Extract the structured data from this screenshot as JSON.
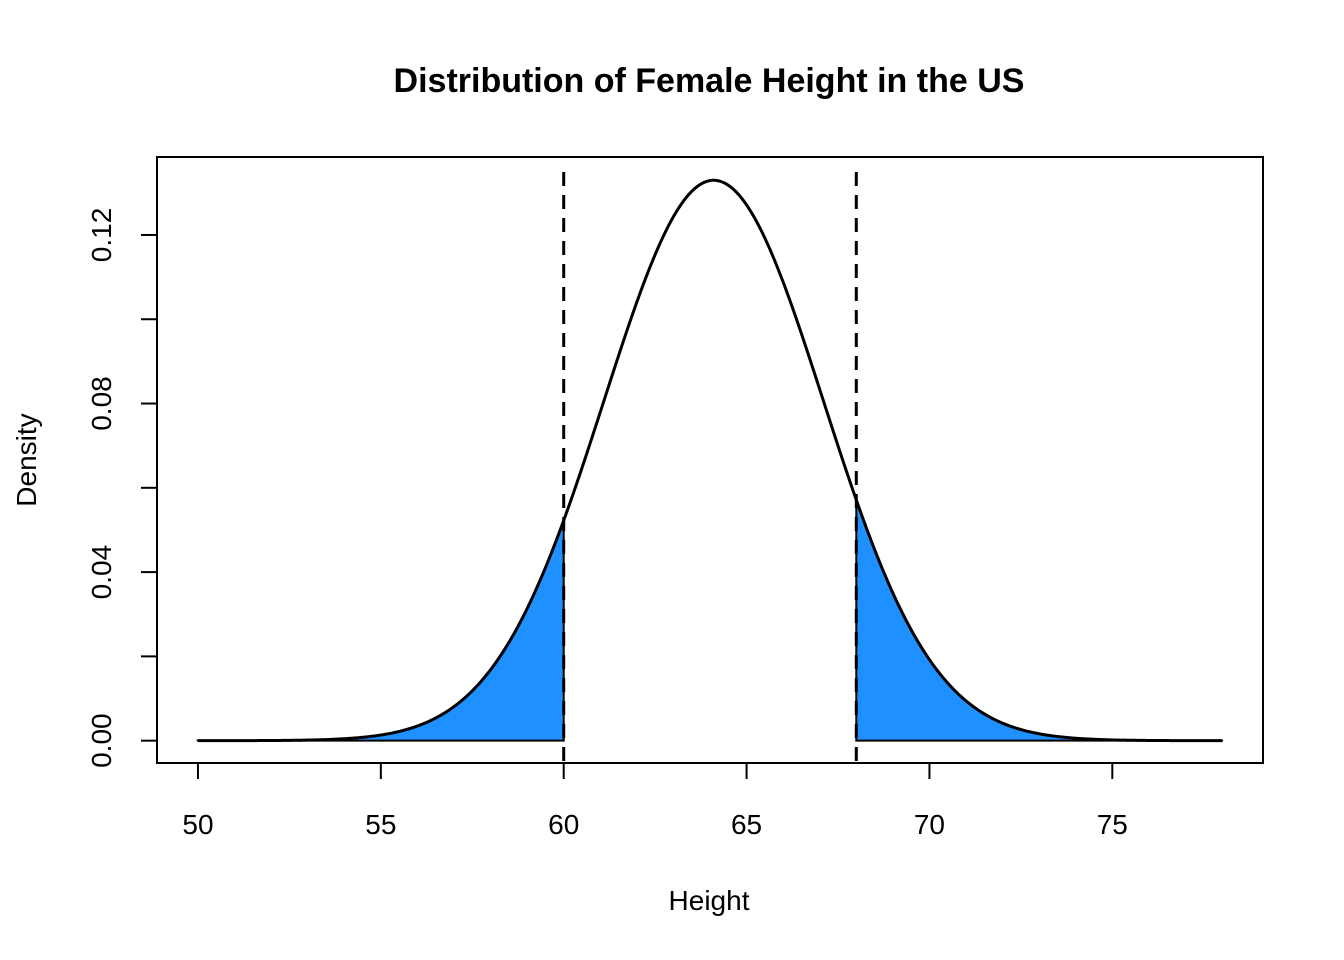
{
  "chart_data": {
    "type": "area",
    "title": "Distribution of Female Height in the US",
    "xlabel": "Height",
    "ylabel": "Density",
    "xlim": [
      48.88,
      79.12
    ],
    "ylim": [
      -0.0053,
      0.1385
    ],
    "x_ticks": [
      50,
      55,
      60,
      65,
      70,
      75
    ],
    "x_tick_labels": [
      "50",
      "55",
      "60",
      "65",
      "70",
      "75"
    ],
    "y_ticks": [
      0.0,
      0.02,
      0.04,
      0.06,
      0.08,
      0.1,
      0.12
    ],
    "y_tick_labels": [
      "0.00",
      "",
      "0.04",
      "",
      "0.08",
      "",
      "0.12"
    ],
    "curve": {
      "name": "Normal density",
      "mean": 64.1,
      "sd": 3,
      "x_range": [
        50,
        78
      ],
      "color": "#000000"
    },
    "shaded_regions": [
      {
        "name": "lower tail",
        "from": 50,
        "to": 60,
        "color": "#1E90FF"
      },
      {
        "name": "upper tail",
        "from": 68,
        "to": 78,
        "color": "#1E90FF"
      }
    ],
    "reference_lines": [
      {
        "name": "lower cutoff",
        "x": 60,
        "style": "dashed"
      },
      {
        "name": "upper cutoff",
        "x": 68,
        "style": "dashed"
      }
    ],
    "grid": false
  }
}
